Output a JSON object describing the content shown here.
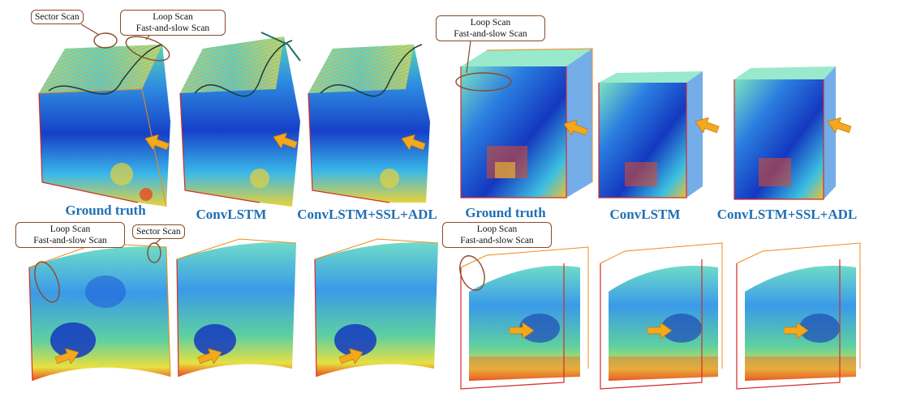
{
  "figure": {
    "top_row_captions": [
      "Ground truth",
      "ConvLSTM",
      "ConvLSTM+SSL+ADL",
      "Ground truth",
      "ConvLSTM",
      "ConvLSTM+SSL+ADL"
    ],
    "callouts": {
      "top_left_sector": "Sector Scan",
      "top_left_loop_line1": "Loop Scan",
      "top_left_loop_line2": "Fast-and-slow Scan",
      "top_right_loop_line1": "Loop Scan",
      "top_right_loop_line2": "Fast-and-slow Scan",
      "bottom_left_loop_line1": "Loop Scan",
      "bottom_left_loop_line2": "Fast-and-slow Scan",
      "bottom_left_sector": "Sector Scan",
      "bottom_right_loop_line1": "Loop Scan",
      "bottom_right_loop_line2": "Fast-and-slow Scan"
    },
    "colors": {
      "caption": "#1f6fb4",
      "callout_border": "#8b4a2a",
      "arrow": "#f4a81c",
      "frame_red": "#d62a2a",
      "frame_orange": "#f08a1a",
      "trajectory": "#1e6a6a"
    }
  }
}
